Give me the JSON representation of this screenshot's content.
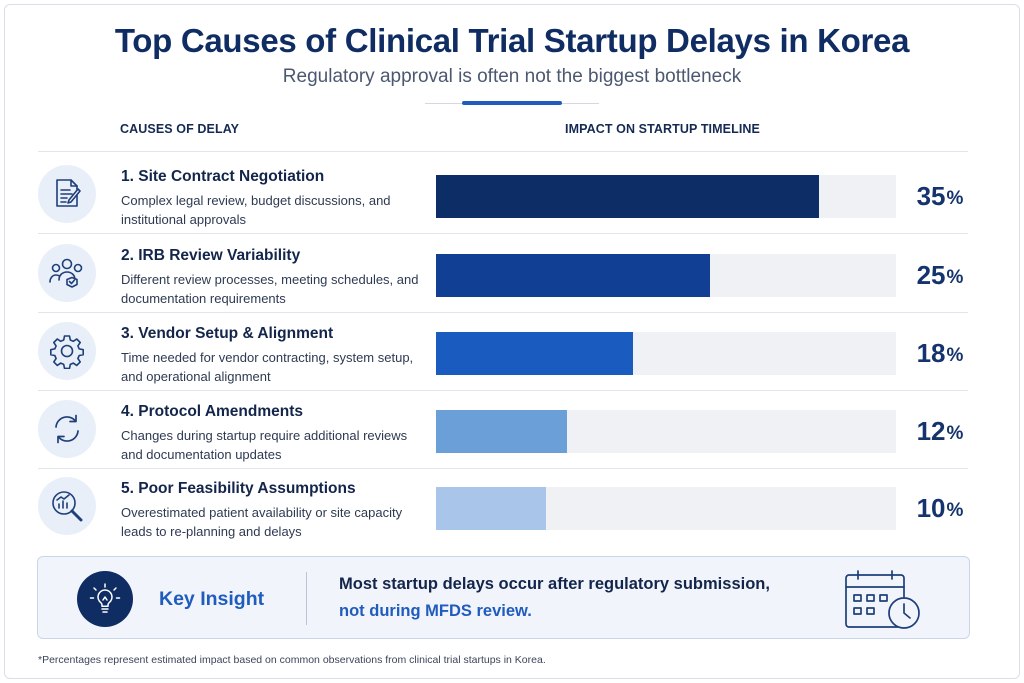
{
  "title": "Top Causes of Clinical Trial Startup Delays in Korea",
  "subtitle": "Regulatory approval is often not the biggest bottleneck",
  "columns": {
    "left": "CAUSES OF DELAY",
    "right": "IMPACT ON STARTUP TIMELINE"
  },
  "rows": [
    {
      "title": "1. Site Contract Negotiation",
      "desc": "Complex legal review, budget discussions, and institutional approvals",
      "icon": "document-edit-icon",
      "value": "35",
      "color": "#0d2d66"
    },
    {
      "title": "2. IRB Review Variability",
      "desc": "Different review processes, meeting schedules, and documentation requirements",
      "icon": "people-shield-icon",
      "value": "25",
      "color": "#113f94"
    },
    {
      "title": "3. Vendor Setup & Alignment",
      "desc": "Time needed for vendor contracting, system setup, and operational alignment",
      "icon": "gear-icon",
      "value": "18",
      "color": "#1a5bbf"
    },
    {
      "title": "4. Protocol Amendments",
      "desc": "Changes during startup require additional reviews and documentation updates",
      "icon": "refresh-icon",
      "value": "12",
      "color": "#6b9fd8"
    },
    {
      "title": "5. Poor Feasibility Assumptions",
      "desc": "Overestimated patient availability or site capacity leads to re-planning and delays",
      "icon": "chart-magnifier-icon",
      "value": "10",
      "color": "#a9c5ea"
    }
  ],
  "percent_sign": "%",
  "insight": {
    "label": "Key Insight",
    "line1": "Most startup delays occur after regulatory submission,",
    "line2": "not during MFDS review.",
    "icon": "lightbulb-icon",
    "side_icon": "calendar-clock-icon"
  },
  "footnote": "*Percentages represent estimated impact based on common observations from clinical trial startups in Korea.",
  "chart_data": {
    "type": "bar",
    "orientation": "horizontal",
    "title": "Top Causes of Clinical Trial Startup Delays in Korea",
    "subtitle": "Regulatory approval is often not the biggest bottleneck",
    "xlabel": "IMPACT ON STARTUP TIMELINE",
    "ylabel": "CAUSES OF DELAY",
    "categories": [
      "1. Site Contract Negotiation",
      "2. IRB Review Variability",
      "3. Vendor Setup & Alignment",
      "4. Protocol Amendments",
      "5. Poor Feasibility Assumptions"
    ],
    "values": [
      35,
      25,
      18,
      12,
      10
    ],
    "unit": "%",
    "xlim": [
      0,
      42
    ],
    "grid": false,
    "legend": "none"
  }
}
